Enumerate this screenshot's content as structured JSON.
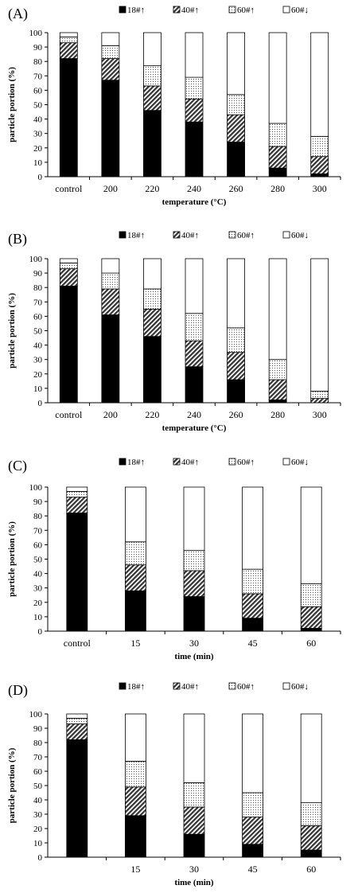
{
  "legend": [
    "18#↑",
    "40#↑",
    "60#↑",
    "60#↓"
  ],
  "chart_data": [
    {
      "type": "bar",
      "panel_label": "(A)",
      "xlabel": "temperature (°C)",
      "ylabel": "particle portion (%)",
      "ylim": [
        0,
        100
      ],
      "yticks": [
        0,
        10,
        20,
        30,
        40,
        50,
        60,
        70,
        80,
        90,
        100
      ],
      "stacked": true,
      "legend_position": "top",
      "categories": [
        "control",
        "200",
        "220",
        "240",
        "260",
        "280",
        "300"
      ],
      "series": [
        {
          "name": "18#↑",
          "values": [
            82,
            67,
            46,
            38,
            24,
            6,
            2
          ]
        },
        {
          "name": "40#↑",
          "values": [
            11,
            15,
            17,
            16,
            19,
            15,
            12
          ]
        },
        {
          "name": "60#↑",
          "values": [
            4,
            9,
            14,
            15,
            14,
            16,
            14
          ]
        },
        {
          "name": "60#↓",
          "values": [
            3,
            9,
            23,
            31,
            43,
            63,
            72
          ]
        }
      ]
    },
    {
      "type": "bar",
      "panel_label": "(B)",
      "xlabel": "temperature (°C)",
      "ylabel": "particle portion (%)",
      "ylim": [
        0,
        100
      ],
      "yticks": [
        0,
        10,
        20,
        30,
        40,
        50,
        60,
        70,
        80,
        90,
        100
      ],
      "stacked": true,
      "legend_position": "top",
      "categories": [
        "control",
        "200",
        "220",
        "240",
        "260",
        "280",
        "300"
      ],
      "series": [
        {
          "name": "18#↑",
          "values": [
            81,
            61,
            46,
            25,
            16,
            2,
            0
          ]
        },
        {
          "name": "40#↑",
          "values": [
            12,
            18,
            19,
            18,
            19,
            14,
            3
          ]
        },
        {
          "name": "60#↑",
          "values": [
            4,
            11,
            14,
            19,
            17,
            14,
            5
          ]
        },
        {
          "name": "60#↓",
          "values": [
            3,
            10,
            21,
            38,
            48,
            70,
            92
          ]
        }
      ]
    },
    {
      "type": "bar",
      "panel_label": "(C)",
      "xlabel": "time (min)",
      "ylabel": "particle portion (%)",
      "ylim": [
        0,
        100
      ],
      "yticks": [
        0,
        10,
        20,
        30,
        40,
        50,
        60,
        70,
        80,
        90,
        100
      ],
      "stacked": true,
      "legend_position": "top",
      "categories": [
        "control",
        "15",
        "30",
        "45",
        "60"
      ],
      "series": [
        {
          "name": "18#↑",
          "values": [
            82,
            28,
            24,
            9,
            2
          ]
        },
        {
          "name": "40#↑",
          "values": [
            11,
            18,
            18,
            17,
            15
          ]
        },
        {
          "name": "60#↑",
          "values": [
            4,
            16,
            14,
            17,
            16
          ]
        },
        {
          "name": "60#↓",
          "values": [
            3,
            38,
            44,
            57,
            67
          ]
        }
      ]
    },
    {
      "type": "bar",
      "panel_label": "(D)",
      "xlabel": "time (min)",
      "ylabel": "particle portion (%)",
      "ylim": [
        0,
        100
      ],
      "yticks": [
        0,
        10,
        20,
        30,
        40,
        50,
        60,
        70,
        80,
        90,
        100
      ],
      "stacked": true,
      "legend_position": "top",
      "categories": [
        "",
        "15",
        "30",
        "45",
        "60"
      ],
      "series": [
        {
          "name": "18#↑",
          "values": [
            82,
            29,
            16,
            9,
            5
          ]
        },
        {
          "name": "40#↑",
          "values": [
            11,
            20,
            19,
            19,
            17
          ]
        },
        {
          "name": "60#↑",
          "values": [
            4,
            18,
            17,
            17,
            16
          ]
        },
        {
          "name": "60#↓",
          "values": [
            3,
            33,
            48,
            55,
            62
          ]
        }
      ]
    }
  ]
}
